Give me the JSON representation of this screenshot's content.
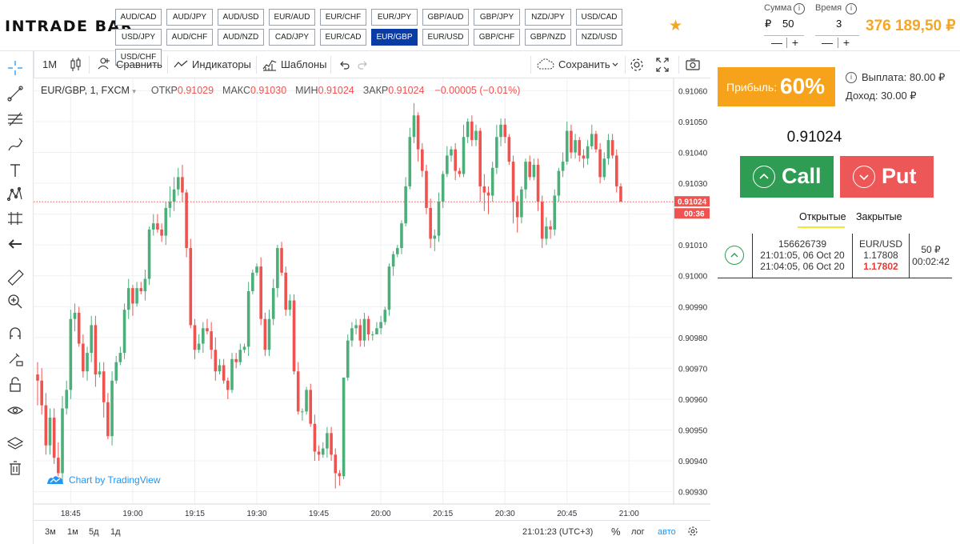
{
  "header": {
    "logo": "INTRADE BAR",
    "pairs": [
      "AUD/CAD",
      "AUD/JPY",
      "AUD/USD",
      "EUR/AUD",
      "EUR/CHF",
      "EUR/JPY",
      "GBP/AUD",
      "GBP/JPY",
      "NZD/JPY",
      "USD/CAD",
      "USD/JPY",
      "AUD/CHF",
      "AUD/NZD",
      "CAD/JPY",
      "EUR/CAD",
      "EUR/GBP",
      "EUR/USD",
      "GBP/CHF",
      "GBP/NZD",
      "NZD/USD",
      "USD/CHF"
    ],
    "active_pair": "EUR/GBP",
    "amount": {
      "label": "Сумма",
      "currency": "₽",
      "value": "50",
      "minus": "—",
      "plus": "+"
    },
    "time": {
      "label": "Время",
      "value": "3",
      "minus": "—",
      "plus": "+"
    },
    "balance": "376 189,50 ₽"
  },
  "toolbar": {
    "interval": "1M",
    "compare": "Сравнить",
    "indicators": "Индикаторы",
    "templates": "Шаблоны",
    "save": "Сохранить"
  },
  "legend": {
    "symbol": "EUR/GBP, 1, FXCM",
    "open_label": "ОТКР",
    "open": "0.91029",
    "high_label": "МАКС",
    "high": "0.91030",
    "low_label": "МИН",
    "low": "0.91024",
    "close_label": "ЗАКР",
    "close": "0.91024",
    "change": "−0.00005 (−0.01%)"
  },
  "chart_credit": "Chart by TradingView",
  "chart_data": {
    "type": "candlestick",
    "ylim": [
      0.90926,
      0.91064
    ],
    "yticks": [
      "0.91060",
      "0.91050",
      "0.91040",
      "0.91030",
      "0.91020",
      "0.91010",
      "0.91000",
      "0.90990",
      "0.90980",
      "0.90970",
      "0.90960",
      "0.90950",
      "0.90940",
      "0.90930"
    ],
    "xticks": [
      {
        "label": "18:45",
        "index": 8
      },
      {
        "label": "19:00",
        "index": 23
      },
      {
        "label": "19:15",
        "index": 38
      },
      {
        "label": "19:30",
        "index": 53
      },
      {
        "label": "19:45",
        "index": 68
      },
      {
        "label": "20:00",
        "index": 83
      },
      {
        "label": "20:15",
        "index": 98
      },
      {
        "label": "20:30",
        "index": 113
      },
      {
        "label": "20:45",
        "index": 128
      },
      {
        "label": "21:00",
        "index": 143
      }
    ],
    "current_price": "0.91024",
    "countdown": "00:36",
    "up_color": "#4caf7a",
    "down_color": "#ef5350",
    "candles": [
      [
        0.90968,
        0.90966,
        0.90972,
        0.90958
      ],
      [
        0.90966,
        0.90958,
        0.9097,
        0.90955
      ],
      [
        0.90958,
        0.90945,
        0.90962,
        0.90942
      ],
      [
        0.90945,
        0.90954,
        0.90957,
        0.90942
      ],
      [
        0.90954,
        0.90941,
        0.90957,
        0.90939
      ],
      [
        0.90941,
        0.90936,
        0.90946,
        0.90935
      ],
      [
        0.90936,
        0.90957,
        0.90961,
        0.90933
      ],
      [
        0.90957,
        0.90963,
        0.90966,
        0.90955
      ],
      [
        0.90963,
        0.90986,
        0.90989,
        0.9096
      ],
      [
        0.90986,
        0.90988,
        0.90991,
        0.90982
      ],
      [
        0.90988,
        0.90978,
        0.9099,
        0.90977
      ],
      [
        0.90978,
        0.90969,
        0.90981,
        0.90967
      ],
      [
        0.90969,
        0.90975,
        0.90977,
        0.90966
      ],
      [
        0.90975,
        0.90984,
        0.90987,
        0.90972
      ],
      [
        0.90984,
        0.90968,
        0.90987,
        0.90964
      ],
      [
        0.90968,
        0.90969,
        0.90972,
        0.90967
      ],
      [
        0.90969,
        0.90959,
        0.90972,
        0.90954
      ],
      [
        0.90959,
        0.90948,
        0.90962,
        0.90947
      ],
      [
        0.90948,
        0.90966,
        0.90969,
        0.90945
      ],
      [
        0.90966,
        0.90972,
        0.90974,
        0.90965
      ],
      [
        0.90972,
        0.90975,
        0.90977,
        0.90971
      ],
      [
        0.90975,
        0.90989,
        0.90991,
        0.90973
      ],
      [
        0.90989,
        0.90996,
        0.90999,
        0.90986
      ],
      [
        0.90996,
        0.90991,
        0.90997,
        0.90987
      ],
      [
        0.90991,
        0.90996,
        0.90998,
        0.9099
      ],
      [
        0.90996,
        0.90995,
        0.90998,
        0.90994
      ],
      [
        0.90995,
        0.90999,
        0.91002,
        0.90992
      ],
      [
        0.90999,
        0.91015,
        0.91016,
        0.90997
      ],
      [
        0.91015,
        0.91017,
        0.9102,
        0.91013
      ],
      [
        0.91017,
        0.91015,
        0.9102,
        0.91014
      ],
      [
        0.91015,
        0.91013,
        0.91017,
        0.91011
      ],
      [
        0.91013,
        0.91022,
        0.91024,
        0.9101
      ],
      [
        0.91022,
        0.91024,
        0.91029,
        0.91019
      ],
      [
        0.91024,
        0.91028,
        0.91032,
        0.91021
      ],
      [
        0.91028,
        0.91032,
        0.91035,
        0.91026
      ],
      [
        0.91032,
        0.91027,
        0.91036,
        0.91024
      ],
      [
        0.91027,
        0.91009,
        0.91028,
        0.91006
      ],
      [
        0.91009,
        0.90984,
        0.91012,
        0.90983
      ],
      [
        0.90984,
        0.90976,
        0.90986,
        0.90973
      ],
      [
        0.90976,
        0.90978,
        0.90981,
        0.90975
      ],
      [
        0.90978,
        0.90983,
        0.90985,
        0.90975
      ],
      [
        0.90983,
        0.90982,
        0.90986,
        0.90981
      ],
      [
        0.90982,
        0.90976,
        0.90985,
        0.90973
      ],
      [
        0.90976,
        0.90969,
        0.9098,
        0.90966
      ],
      [
        0.90969,
        0.90971,
        0.90973,
        0.90968
      ],
      [
        0.90971,
        0.90966,
        0.90973,
        0.90965
      ],
      [
        0.90966,
        0.90963,
        0.90967,
        0.9096
      ],
      [
        0.90963,
        0.90973,
        0.90975,
        0.90962
      ],
      [
        0.90973,
        0.90972,
        0.90975,
        0.9097
      ],
      [
        0.90972,
        0.90976,
        0.90978,
        0.90971
      ],
      [
        0.90976,
        0.90977,
        0.90978,
        0.90975
      ],
      [
        0.90977,
        0.90995,
        0.90998,
        0.90974
      ],
      [
        0.90995,
        0.91001,
        0.91002,
        0.90994
      ],
      [
        0.91001,
        0.91003,
        0.91004,
        0.91
      ],
      [
        0.91003,
        0.90986,
        0.91006,
        0.90984
      ],
      [
        0.90986,
        0.90976,
        0.90988,
        0.90974
      ],
      [
        0.90976,
        0.90986,
        0.90989,
        0.90974
      ],
      [
        0.90986,
        0.90996,
        0.90999,
        0.90984
      ],
      [
        0.90996,
        0.91009,
        0.9101,
        0.90993
      ],
      [
        0.91009,
        0.91001,
        0.91011,
        0.91
      ],
      [
        0.91001,
        0.90989,
        0.91003,
        0.90987
      ],
      [
        0.90989,
        0.90992,
        0.90994,
        0.90987
      ],
      [
        0.90992,
        0.90969,
        0.90994,
        0.90968
      ],
      [
        0.90969,
        0.90956,
        0.90972,
        0.90955
      ],
      [
        0.90956,
        0.90956,
        0.90957,
        0.90953
      ],
      [
        0.90956,
        0.90963,
        0.90964,
        0.90955
      ],
      [
        0.90963,
        0.90952,
        0.90965,
        0.90951
      ],
      [
        0.90952,
        0.90943,
        0.90955,
        0.9094
      ],
      [
        0.90943,
        0.90942,
        0.90945,
        0.9094
      ],
      [
        0.90942,
        0.90944,
        0.90946,
        0.90941
      ],
      [
        0.90944,
        0.90949,
        0.90951,
        0.90941
      ],
      [
        0.90949,
        0.90942,
        0.90951,
        0.9094
      ],
      [
        0.90942,
        0.90936,
        0.90944,
        0.90931
      ],
      [
        0.90936,
        0.90935,
        0.90937,
        0.90932
      ],
      [
        0.90935,
        0.90967,
        0.90967,
        0.90934
      ],
      [
        0.90967,
        0.90979,
        0.90981,
        0.90966
      ],
      [
        0.90979,
        0.90983,
        0.90985,
        0.90977
      ],
      [
        0.90983,
        0.90984,
        0.90986,
        0.90981
      ],
      [
        0.90984,
        0.90979,
        0.90986,
        0.90977
      ],
      [
        0.90979,
        0.90986,
        0.90988,
        0.90977
      ],
      [
        0.90986,
        0.90981,
        0.90987,
        0.90979
      ],
      [
        0.90981,
        0.90981,
        0.90982,
        0.90979
      ],
      [
        0.90981,
        0.90983,
        0.90985,
        0.90981
      ],
      [
        0.90983,
        0.90985,
        0.90987,
        0.90981
      ],
      [
        0.90985,
        0.90989,
        0.9099,
        0.90984
      ],
      [
        0.90989,
        0.91003,
        0.91004,
        0.90987
      ],
      [
        0.91003,
        0.91007,
        0.91008,
        0.91
      ],
      [
        0.91007,
        0.91009,
        0.9101,
        0.91006
      ],
      [
        0.91009,
        0.91017,
        0.91018,
        0.91007
      ],
      [
        0.91017,
        0.91029,
        0.91032,
        0.91016
      ],
      [
        0.91029,
        0.91045,
        0.91048,
        0.91028
      ],
      [
        0.91045,
        0.91052,
        0.91056,
        0.91043
      ],
      [
        0.91052,
        0.91041,
        0.91053,
        0.91037
      ],
      [
        0.91041,
        0.91034,
        0.91043,
        0.91032
      ],
      [
        0.91034,
        0.91022,
        0.91036,
        0.9102
      ],
      [
        0.91022,
        0.91012,
        0.91025,
        0.91009
      ],
      [
        0.91012,
        0.91013,
        0.91015,
        0.91008
      ],
      [
        0.91013,
        0.91024,
        0.91027,
        0.91011
      ],
      [
        0.91024,
        0.91033,
        0.91034,
        0.91022
      ],
      [
        0.91033,
        0.91039,
        0.91042,
        0.91032
      ],
      [
        0.91039,
        0.91041,
        0.91042,
        0.91037
      ],
      [
        0.91041,
        0.91034,
        0.91043,
        0.91031
      ],
      [
        0.91034,
        0.91033,
        0.91035,
        0.91032
      ],
      [
        0.91033,
        0.91045,
        0.91049,
        0.91032
      ],
      [
        0.91045,
        0.9105,
        0.91051,
        0.91043
      ],
      [
        0.9105,
        0.91044,
        0.91052,
        0.91042
      ],
      [
        0.91044,
        0.91047,
        0.91049,
        0.91042
      ],
      [
        0.91047,
        0.91029,
        0.91048,
        0.91024
      ],
      [
        0.91029,
        0.91027,
        0.91033,
        0.91021
      ],
      [
        0.91027,
        0.91026,
        0.91029,
        0.9102
      ],
      [
        0.91026,
        0.91035,
        0.91037,
        0.91024
      ],
      [
        0.91035,
        0.91045,
        0.91049,
        0.91033
      ],
      [
        0.91045,
        0.91049,
        0.91051,
        0.91042
      ],
      [
        0.91049,
        0.91045,
        0.91051,
        0.91043
      ],
      [
        0.91045,
        0.91037,
        0.91046,
        0.91036
      ],
      [
        0.91037,
        0.91024,
        0.91039,
        0.91017
      ],
      [
        0.91024,
        0.91019,
        0.91026,
        0.91014
      ],
      [
        0.91019,
        0.91028,
        0.91029,
        0.91017
      ],
      [
        0.91028,
        0.91037,
        0.91038,
        0.91025
      ],
      [
        0.91037,
        0.91032,
        0.91039,
        0.91031
      ],
      [
        0.91032,
        0.91036,
        0.91038,
        0.91031
      ],
      [
        0.91036,
        0.91024,
        0.91038,
        0.91021
      ],
      [
        0.91024,
        0.91012,
        0.91026,
        0.91009
      ],
      [
        0.91012,
        0.91016,
        0.91019,
        0.9101
      ],
      [
        0.91016,
        0.91015,
        0.91018,
        0.91012
      ],
      [
        0.91015,
        0.91026,
        0.91028,
        0.91013
      ],
      [
        0.91026,
        0.91034,
        0.91035,
        0.91024
      ],
      [
        0.91034,
        0.91037,
        0.9104,
        0.91032
      ],
      [
        0.91037,
        0.91047,
        0.9105,
        0.91036
      ],
      [
        0.91047,
        0.9104,
        0.91049,
        0.91038
      ],
      [
        0.9104,
        0.91044,
        0.91046,
        0.91038
      ],
      [
        0.91044,
        0.91039,
        0.91045,
        0.91037
      ],
      [
        0.91039,
        0.91038,
        0.91041,
        0.91035
      ],
      [
        0.91038,
        0.91042,
        0.91044,
        0.91036
      ],
      [
        0.91042,
        0.91046,
        0.91049,
        0.91041
      ],
      [
        0.91046,
        0.91041,
        0.91047,
        0.9104
      ],
      [
        0.91041,
        0.91032,
        0.91043,
        0.9103
      ],
      [
        0.91032,
        0.91038,
        0.9104,
        0.91031
      ],
      [
        0.91038,
        0.91044,
        0.91046,
        0.91036
      ],
      [
        0.91044,
        0.91039,
        0.91046,
        0.91038
      ],
      [
        0.91039,
        0.91029,
        0.91041,
        0.91027
      ],
      [
        0.91029,
        0.91024,
        0.9103,
        0.91024
      ]
    ]
  },
  "bottombar": {
    "ranges": [
      "3м",
      "1м",
      "5д",
      "1д"
    ],
    "clock": "21:01:23 (UTC+3)",
    "percent": "%",
    "log": "лог",
    "auto": "авто"
  },
  "panel": {
    "profit_label": "Прибыль:",
    "profit_value": "60%",
    "payout": "Выплата: 80.00 ₽",
    "income": "Доход: 30.00 ₽",
    "current_price": "0.91024",
    "call": "Call",
    "put": "Put",
    "tab_open": "Открытые",
    "tab_closed": "Закрытые",
    "trade": {
      "id": "156626739",
      "open_time": "21:01:05, 06 Oct 20",
      "close_time": "21:04:05, 06 Oct 20",
      "pair": "EUR/USD",
      "open_price": "1.17808",
      "close_price": "1.17802",
      "amount": "50 ₽",
      "remaining": "00:02:42"
    }
  },
  "colors": {
    "accent_orange": "#f7a21b",
    "call_green": "#2e9c52",
    "put_red": "#ee5757",
    "active_pair_blue": "#0a3ca8",
    "link_blue": "#2196f3"
  }
}
